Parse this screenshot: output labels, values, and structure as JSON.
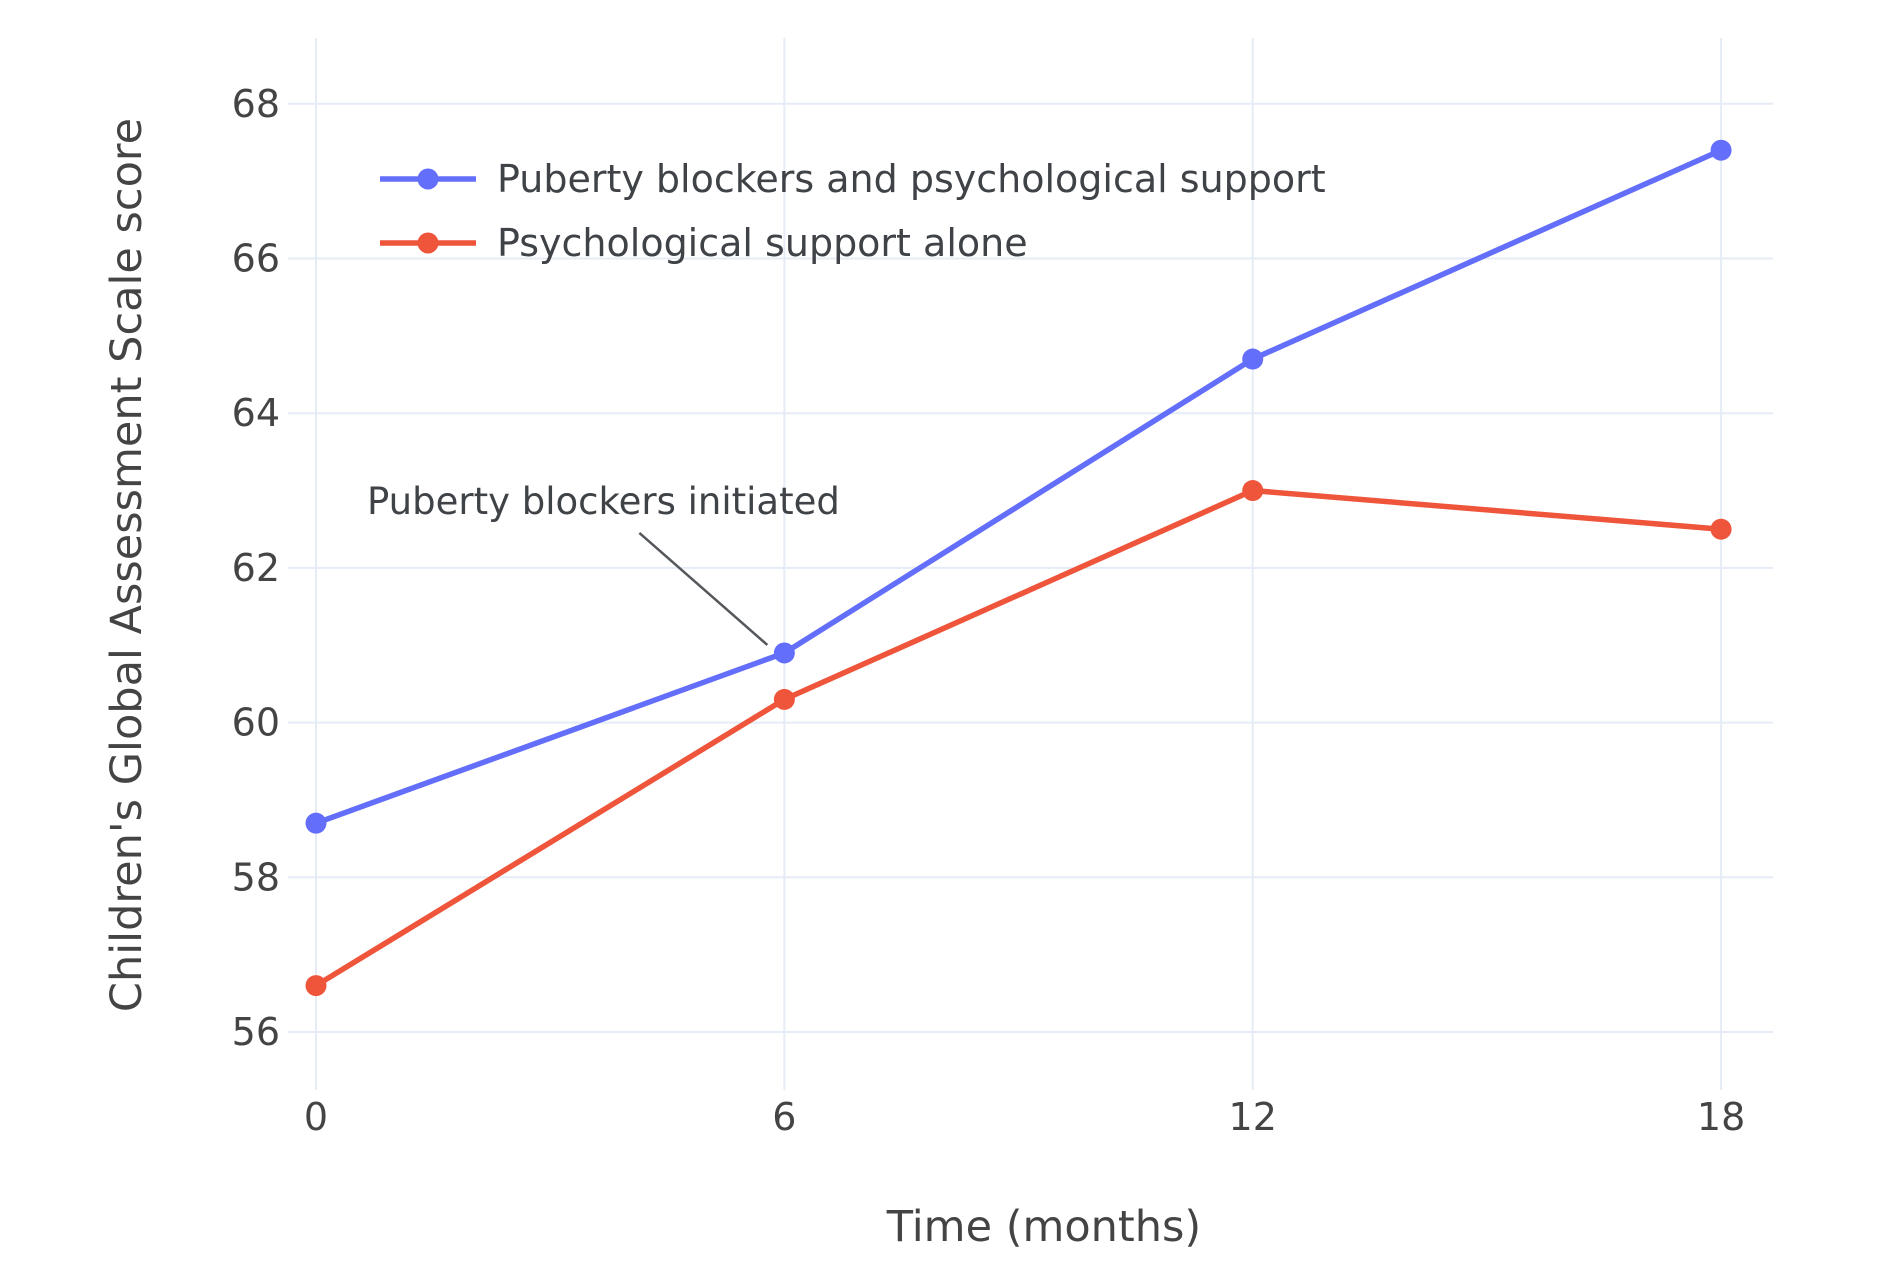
{
  "figure": {
    "background": "#ffffff"
  },
  "chart_data": {
    "type": "line",
    "title": "",
    "xlabel": "Time (months)",
    "ylabel": "Children's Global Assessment Scale score",
    "x": [
      0,
      6,
      12,
      18
    ],
    "xticks": [
      "0",
      "6",
      "12",
      "18"
    ],
    "yticks": [
      "56",
      "58",
      "60",
      "62",
      "64",
      "66",
      "68"
    ],
    "xlim": [
      0,
      18.7
    ],
    "ylim": [
      55.4,
      68.9
    ],
    "grid": true,
    "legend_position": "inside-top-left",
    "series": [
      {
        "name": "Puberty blockers and psychological support",
        "color": "#636EFA",
        "values": [
          58.7,
          60.9,
          64.7,
          67.4
        ]
      },
      {
        "name": "Psychological support alone",
        "color": "#EF553B",
        "values": [
          56.6,
          60.3,
          63.0,
          62.5
        ]
      }
    ],
    "annotation": {
      "text": "Puberty blockers initiated",
      "target_x": 6,
      "target_y": 60.9
    },
    "colors": {
      "grid": "#E5ECF6",
      "text": "#444444",
      "arrow": "#54575B"
    }
  }
}
